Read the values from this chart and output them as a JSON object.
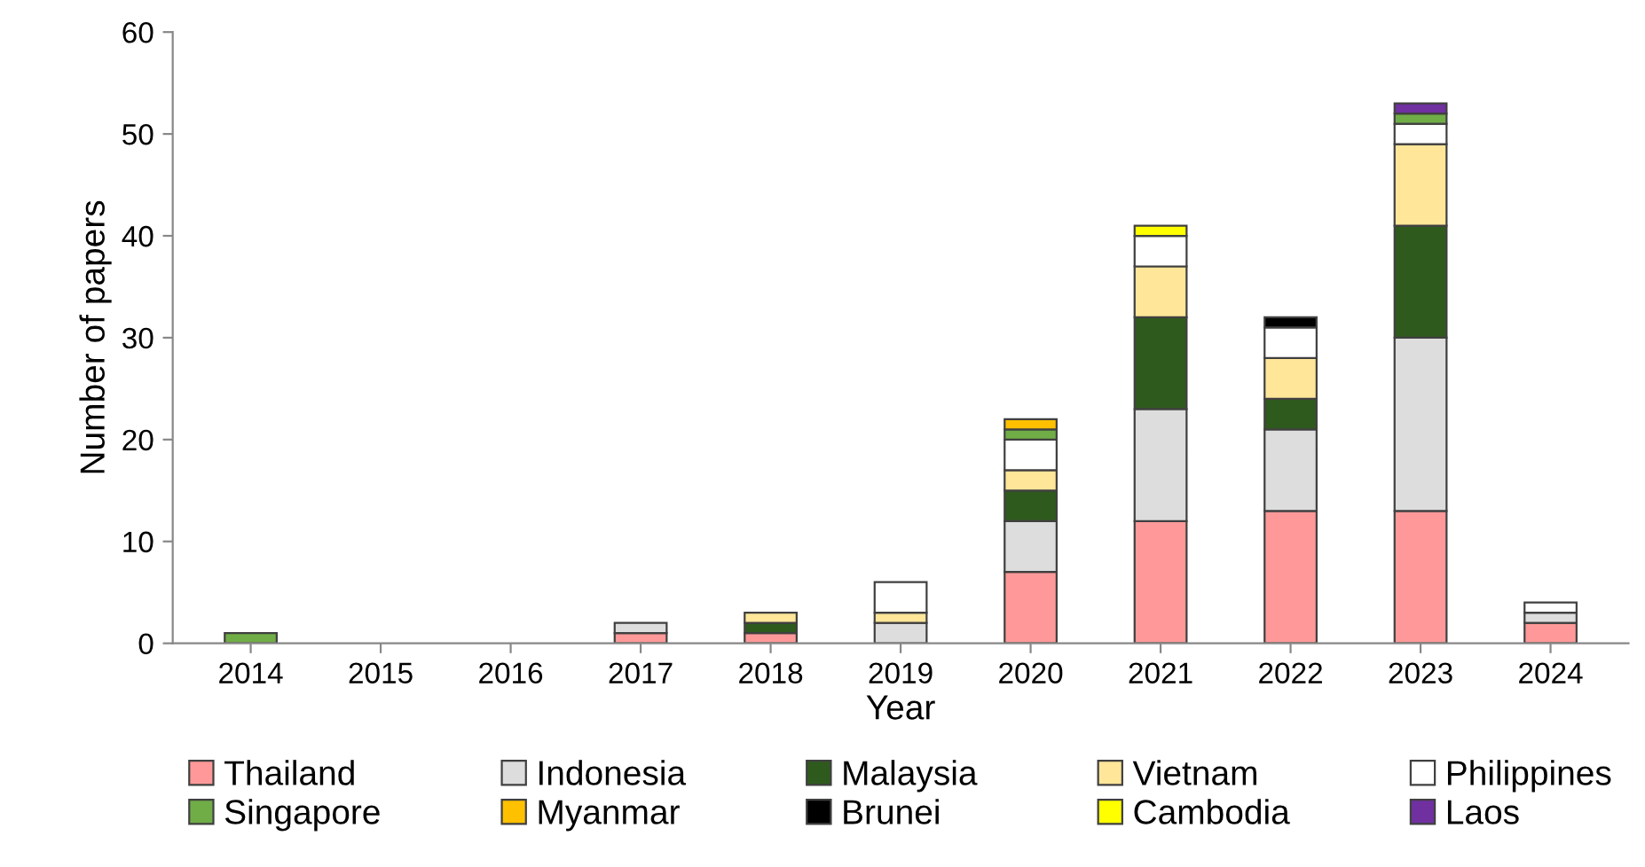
{
  "chart_data": {
    "type": "bar",
    "stacked": true,
    "xlabel": "Year",
    "ylabel": "Number of papers",
    "categories": [
      "2014",
      "2015",
      "2016",
      "2017",
      "2018",
      "2019",
      "2020",
      "2021",
      "2022",
      "2023",
      "2024"
    ],
    "series": [
      {
        "name": "Thailand",
        "color": "#ff9999",
        "values": [
          0,
          0,
          0,
          1,
          1,
          0,
          7,
          12,
          13,
          13,
          2
        ]
      },
      {
        "name": "Indonesia",
        "color": "#dddddd",
        "values": [
          0,
          0,
          0,
          1,
          0,
          2,
          5,
          11,
          8,
          17,
          1
        ]
      },
      {
        "name": "Malaysia",
        "color": "#2f5a1e",
        "values": [
          0,
          0,
          0,
          0,
          1,
          0,
          3,
          9,
          3,
          11,
          0
        ]
      },
      {
        "name": "Vietnam",
        "color": "#ffe699",
        "values": [
          0,
          0,
          0,
          0,
          1,
          1,
          2,
          5,
          4,
          8,
          0
        ]
      },
      {
        "name": "Philippines",
        "color": "#ffffff",
        "values": [
          0,
          0,
          0,
          0,
          0,
          3,
          3,
          3,
          3,
          2,
          1
        ]
      },
      {
        "name": "Singapore",
        "color": "#70ad47",
        "values": [
          1,
          0,
          0,
          0,
          0,
          0,
          1,
          0,
          0,
          1,
          0
        ]
      },
      {
        "name": "Myanmar",
        "color": "#ffc000",
        "values": [
          0,
          0,
          0,
          0,
          0,
          0,
          1,
          0,
          0,
          0,
          0
        ]
      },
      {
        "name": "Brunei",
        "color": "#000000",
        "values": [
          0,
          0,
          0,
          0,
          0,
          0,
          0,
          0,
          1,
          0,
          0
        ]
      },
      {
        "name": "Cambodia",
        "color": "#ffff00",
        "values": [
          0,
          0,
          0,
          0,
          0,
          0,
          0,
          1,
          0,
          0,
          0
        ]
      },
      {
        "name": "Laos",
        "color": "#7030a0",
        "values": [
          0,
          0,
          0,
          0,
          0,
          0,
          0,
          0,
          0,
          1,
          0
        ]
      }
    ],
    "ylim": [
      0,
      60
    ],
    "yticks": [
      0,
      10,
      20,
      30,
      40,
      50,
      60
    ],
    "grid": false,
    "legend": "bottom"
  }
}
